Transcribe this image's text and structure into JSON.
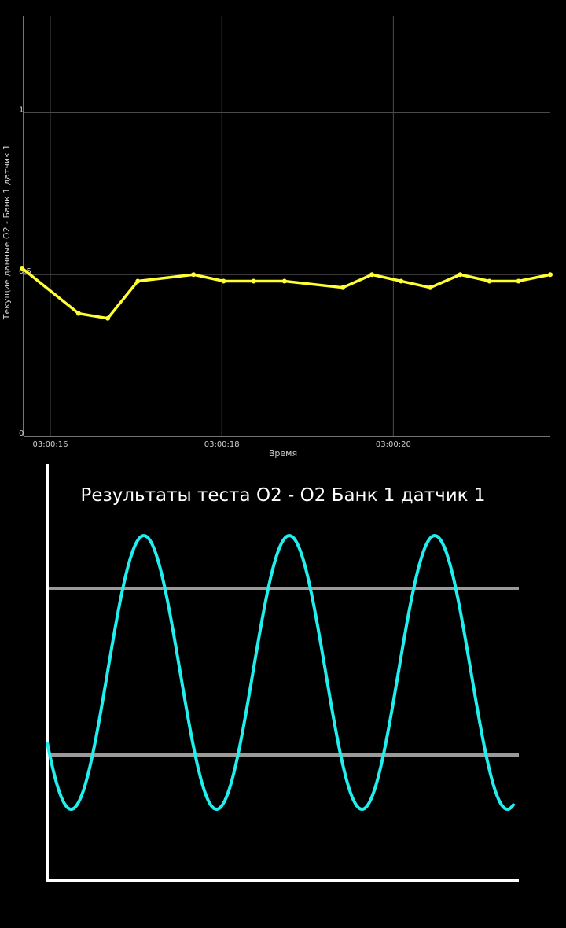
{
  "chart_data": [
    {
      "type": "line",
      "xlabel": "Время",
      "ylabel": "Текущие данные O2 - Банк 1 датчик 1",
      "x_tick_labels": [
        "03:00:16",
        "03:00:18",
        "03:00:20"
      ],
      "y_tick_labels": [
        "0",
        "0.5",
        "1"
      ],
      "ylim": [
        0,
        1.3
      ],
      "grid": true,
      "colors": {
        "line": "#ffff33",
        "background": "#000000",
        "grid": "#4a4a4a",
        "axis": "#9a9a9a"
      },
      "series": [
        {
          "x": [
            15.67,
            16.33,
            16.67,
            17.02,
            17.67,
            18.02,
            18.37,
            18.73,
            19.41,
            19.75,
            20.09,
            20.43,
            20.78,
            21.12,
            21.46,
            21.83
          ],
          "values": [
            0.52,
            0.38,
            0.365,
            0.48,
            0.5,
            0.48,
            0.48,
            0.48,
            0.46,
            0.5,
            0.48,
            0.46,
            0.5,
            0.48,
            0.48,
            0.5
          ]
        }
      ],
      "xlim": [
        15.67,
        21.83
      ]
    },
    {
      "type": "line",
      "title": "Результаты теста O2 - O2 Банк 1 датчик 1",
      "colors": {
        "wave": "#22eeee",
        "threshold": "#9a9a9a",
        "axis": "#ffffff"
      },
      "series": [
        {
          "shape": "sine",
          "cycles_visible": 3.25,
          "peaks": 3,
          "troughs": 4
        }
      ],
      "threshold_lines": 2
    }
  ]
}
